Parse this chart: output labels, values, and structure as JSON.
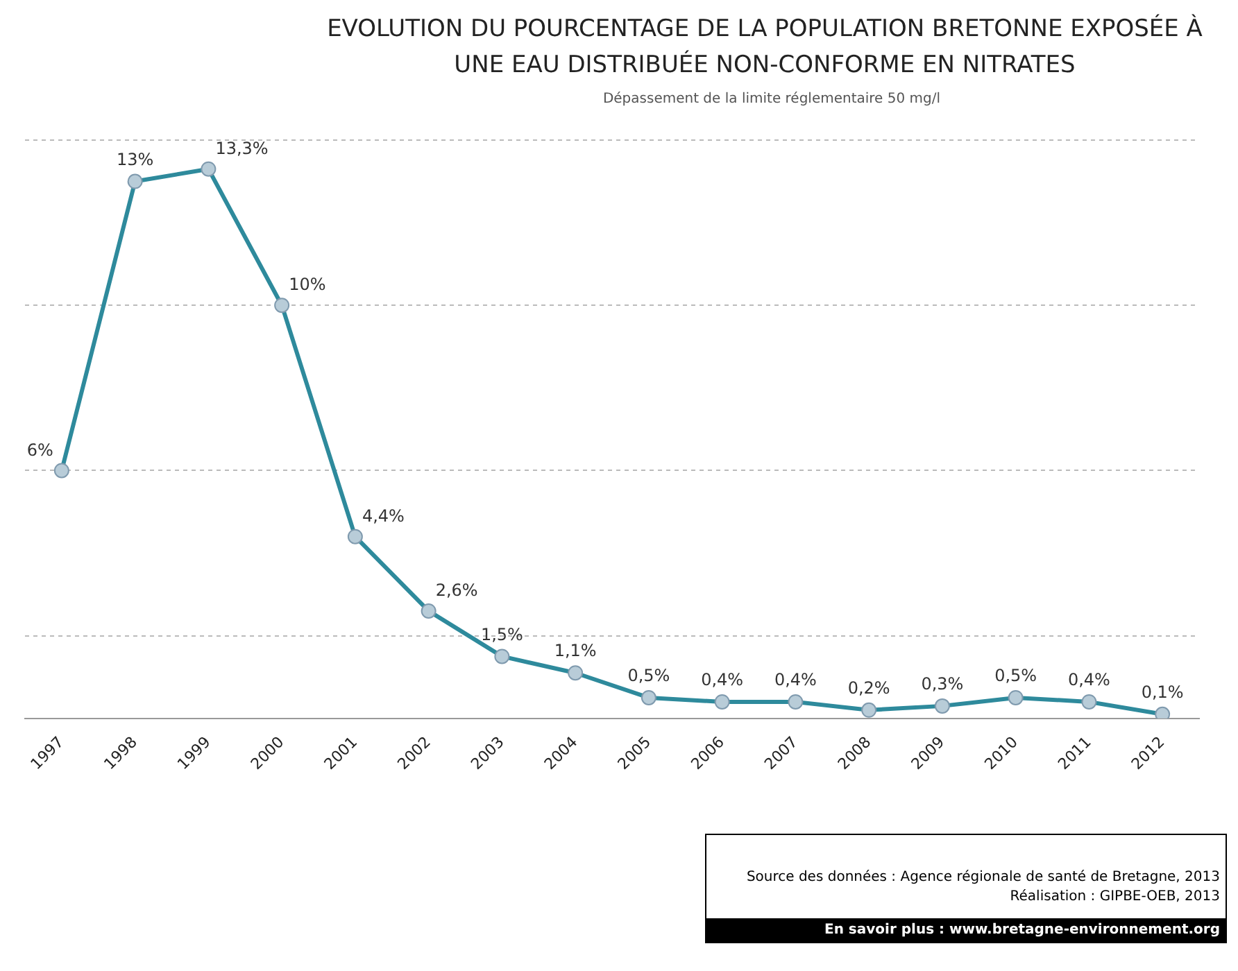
{
  "chart_data": {
    "type": "line",
    "title": "EVOLUTION DU POURCENTAGE DE LA POPULATION BRETONNE EXPOSÉE À UNE EAU DISTRIBUÉE NON-CONFORME EN NITRATES",
    "subtitle": "Dépassement de la limite réglementaire 50 mg/l",
    "categories": [
      "1997",
      "1998",
      "1999",
      "2000",
      "2001",
      "2002",
      "2003",
      "2004",
      "2005",
      "2006",
      "2007",
      "2008",
      "2009",
      "2010",
      "2011",
      "2012"
    ],
    "series": [
      {
        "color": "#2e8a9c",
        "values": [
          6,
          13,
          13.3,
          10,
          4.4,
          2.6,
          1.5,
          1.1,
          0.5,
          0.4,
          0.4,
          0.2,
          0.3,
          0.5,
          0.4,
          0.1
        ],
        "value_labels": [
          "6%",
          "13%",
          "13,3%",
          "10%",
          "4,4%",
          "2,6%",
          "1,5%",
          "1,1%",
          "0,5%",
          "0,4%",
          "0,4%",
          "0,2%",
          "0,3%",
          "0,5%",
          "0,4%",
          "0,1%"
        ]
      }
    ],
    "yticks": [
      {
        "value": 2,
        "label": null
      },
      {
        "value": 6,
        "label": null
      },
      {
        "value": 10,
        "label": null
      },
      {
        "value": 14,
        "label": null
      }
    ],
    "grid": "y",
    "tick_labels": "x",
    "marker": "circle",
    "line_style": "solid",
    "legend": false,
    "annotations": [
      "Source des données : Agence régionale de santé de Bretagne, 2013",
      "Réalisation : GIPBE-OEB, 2013",
      "En savoir plus : www.bretagne-environnement.org"
    ]
  }
}
